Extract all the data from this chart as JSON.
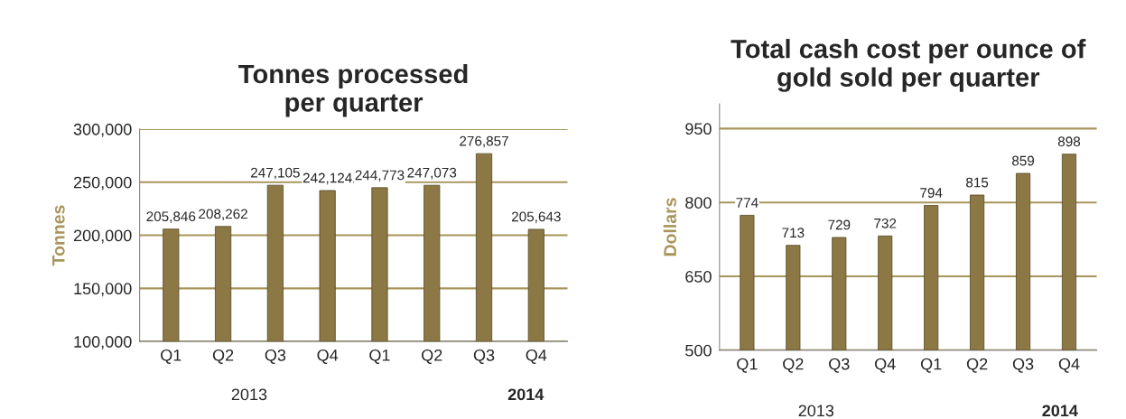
{
  "chart_data": [
    {
      "type": "bar",
      "title": "Tonnes processed\nper quarter",
      "ylabel": "Tonnes",
      "categories": [
        "Q1",
        "Q2",
        "Q3",
        "Q4",
        "Q1",
        "Q2",
        "Q3",
        "Q4"
      ],
      "values": [
        205846,
        208262,
        247105,
        242124,
        244773,
        247073,
        276857,
        205643
      ],
      "value_labels": [
        "205,846",
        "208,262",
        "247,105",
        "242,124",
        "244,773",
        "247,073",
        "276,857",
        "205,643"
      ],
      "color": "#8b7845",
      "ylim": [
        100000,
        300000
      ],
      "yticks": [
        {
          "value": 100000,
          "label": "100,000"
        },
        {
          "value": 150000,
          "label": "150,000"
        },
        {
          "value": 200000,
          "label": "200,000"
        },
        {
          "value": 250000,
          "label": "250,000"
        },
        {
          "value": 300000,
          "label": "300,000"
        }
      ],
      "grid": "y",
      "annotations": [
        "2013",
        "2014"
      ]
    },
    {
      "type": "bar",
      "title": "Total cash cost per ounce of\ngold sold per quarter",
      "ylabel": "Dollars",
      "categories": [
        "Q1",
        "Q2",
        "Q3",
        "Q4",
        "Q1",
        "Q2",
        "Q3",
        "Q4"
      ],
      "values": [
        774,
        713,
        729,
        732,
        794,
        815,
        859,
        898
      ],
      "data_labels": true,
      "color": "#8b7845",
      "ylim": [
        500,
        1000
      ],
      "yticks": [
        500,
        650,
        800,
        950
      ],
      "grid": "y",
      "annotations": [
        "2013",
        "2014"
      ]
    }
  ]
}
